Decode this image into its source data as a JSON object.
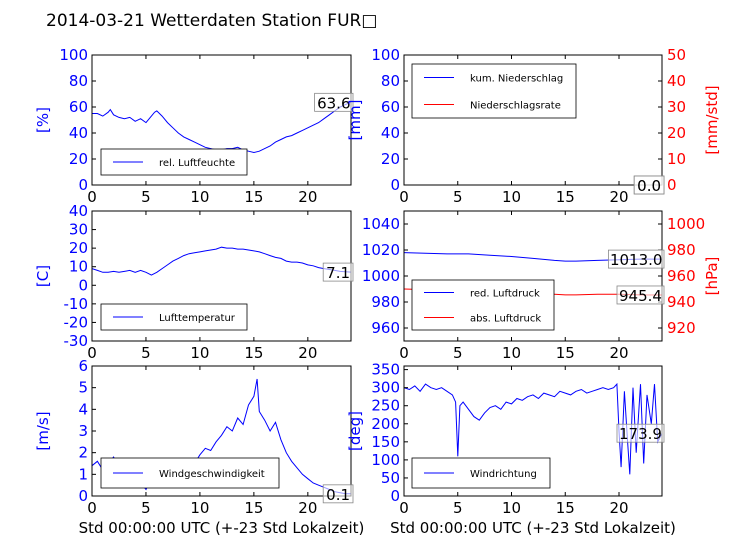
{
  "figure_title": "2014-03-21 Wetterdaten Station FUR□",
  "colors": {
    "primary": "#0000ff",
    "secondary": "#ff0000",
    "axis": "#000000",
    "label_box": "#888888"
  },
  "chart_data": [
    {
      "id": "humidity",
      "type": "line",
      "ylabel": "[%]",
      "xlabel": "",
      "xlim": [
        0,
        24
      ],
      "ylim": [
        0,
        100
      ],
      "xticks": [
        0,
        5,
        10,
        15,
        20
      ],
      "yticks": [
        0,
        20,
        40,
        60,
        80,
        100
      ],
      "legend_loc": "lower-left",
      "annotation": "63.6",
      "series": [
        {
          "name": "rel. Luftfeuchte",
          "color": "#0000ff",
          "x": [
            0,
            0.5,
            1,
            1.5,
            1.7,
            2,
            2.5,
            3,
            3.5,
            4,
            4.5,
            5,
            5.5,
            5.8,
            6,
            6.5,
            7,
            7.5,
            8,
            8.5,
            9,
            9.5,
            10,
            10.5,
            11,
            11.5,
            12,
            12.5,
            13,
            13.5,
            14,
            14.5,
            15,
            15.5,
            16,
            16.5,
            17,
            17.5,
            18,
            18.5,
            19,
            19.5,
            20,
            20.5,
            21,
            21.5,
            22,
            22.5,
            23,
            23.5,
            24
          ],
          "y": [
            55,
            55,
            53,
            56,
            58,
            54,
            52,
            51,
            52,
            49,
            51,
            48,
            53,
            56,
            57,
            53,
            48,
            44,
            40,
            37,
            35,
            33,
            31,
            29,
            28,
            27,
            27,
            28,
            28,
            29,
            27,
            26,
            25,
            26,
            28,
            30,
            33,
            35,
            37,
            38,
            40,
            42,
            44,
            46,
            48,
            51,
            54,
            57,
            60,
            62,
            63.6
          ]
        }
      ]
    },
    {
      "id": "rain",
      "type": "line",
      "ylabel": "[mm]",
      "y2label": "[mm/std]",
      "xlabel": "",
      "xlim": [
        0,
        24
      ],
      "ylim": [
        0,
        100
      ],
      "y2lim": [
        0,
        50
      ],
      "xticks": [
        0,
        5,
        10,
        15,
        20
      ],
      "yticks": [
        0,
        20,
        40,
        60,
        80,
        100
      ],
      "y2ticks": [
        0,
        10,
        20,
        30,
        40,
        50
      ],
      "legend_loc": "upper-left",
      "annotation": "0.0",
      "annotation2": "0.0",
      "series": [
        {
          "name": "kum. Niederschlag",
          "color": "#0000ff",
          "axis": "left",
          "x": [
            0,
            24
          ],
          "y": [
            0,
            0
          ]
        },
        {
          "name": "Niederschlagsrate",
          "color": "#ff0000",
          "axis": "right",
          "x": [
            0,
            24
          ],
          "y": [
            0,
            0
          ]
        }
      ]
    },
    {
      "id": "temperature",
      "type": "line",
      "ylabel": "[C]",
      "xlabel": "",
      "xlim": [
        0,
        24
      ],
      "ylim": [
        -30,
        40
      ],
      "xticks": [
        0,
        5,
        10,
        15,
        20
      ],
      "yticks": [
        -30,
        -20,
        -10,
        0,
        10,
        20,
        30,
        40
      ],
      "legend_loc": "lower-left",
      "annotation": "7.1",
      "series": [
        {
          "name": "Lufttemperatur",
          "color": "#0000ff",
          "x": [
            0,
            0.5,
            1,
            1.5,
            2,
            2.5,
            3,
            3.5,
            4,
            4.5,
            5,
            5.5,
            6,
            6.5,
            7,
            7.5,
            8,
            8.5,
            9,
            9.5,
            10,
            10.5,
            11,
            11.5,
            12,
            12.5,
            13,
            13.5,
            14,
            14.5,
            15,
            15.5,
            16,
            16.5,
            17,
            17.5,
            18,
            18.5,
            19,
            19.5,
            20,
            20.5,
            21,
            21.5,
            22,
            22.5,
            23,
            23.5,
            24
          ],
          "y": [
            9,
            8,
            7,
            7,
            7.5,
            7,
            7.5,
            8,
            7,
            8,
            7,
            5.5,
            7,
            9,
            11,
            13,
            14.5,
            16,
            17,
            17.5,
            18,
            18.5,
            19,
            19.5,
            20.5,
            20,
            20,
            19.5,
            19.5,
            19,
            18.5,
            18,
            17,
            16,
            15,
            14.5,
            13,
            12.5,
            12.5,
            12,
            11,
            10.5,
            9.5,
            9,
            8.5,
            8,
            7.5,
            7.3,
            7.1
          ]
        }
      ]
    },
    {
      "id": "pressure",
      "type": "line",
      "ylabel": "",
      "y2label": "[hPa]",
      "xlabel": "",
      "xlim": [
        0,
        24
      ],
      "ylim": [
        950,
        1050
      ],
      "y2lim": [
        910,
        1010
      ],
      "xticks": [
        0,
        5,
        10,
        15,
        20
      ],
      "yticks": [
        960,
        980,
        1000,
        1020,
        1040
      ],
      "y2ticks": [
        920,
        940,
        960,
        980,
        1000
      ],
      "legend_loc": "lower-left",
      "annotation": "1013.0",
      "annotation2": "945.4",
      "series": [
        {
          "name": "red. Luftdruck",
          "color": "#0000ff",
          "axis": "left",
          "x": [
            0,
            2,
            4,
            6,
            8,
            10,
            12,
            14,
            15,
            16,
            18,
            20,
            22,
            24
          ],
          "y": [
            1018,
            1017.5,
            1017,
            1017,
            1016,
            1015,
            1013.5,
            1012,
            1011.5,
            1011.5,
            1012,
            1012.5,
            1013,
            1013
          ]
        },
        {
          "name": "abs. Luftdruck",
          "color": "#ff0000",
          "axis": "right",
          "x": [
            0,
            2,
            4,
            6,
            8,
            10,
            12,
            14,
            15,
            16,
            18,
            20,
            22,
            24
          ],
          "y": [
            950,
            949.5,
            949,
            949,
            948.5,
            948,
            947,
            946,
            945.5,
            945.5,
            946,
            946,
            945.5,
            945.4
          ]
        }
      ]
    },
    {
      "id": "wind_speed",
      "type": "line",
      "ylabel": "[m/s]",
      "xlabel": "Std 00:00:00 UTC (+-23 Std Lokalzeit)",
      "xlim": [
        0,
        24
      ],
      "ylim": [
        0,
        6
      ],
      "xticks": [
        0,
        5,
        10,
        15,
        20
      ],
      "yticks": [
        0,
        1,
        2,
        3,
        4,
        5,
        6
      ],
      "legend_loc": "lower-left",
      "annotation": "0.1",
      "series": [
        {
          "name": "Windgeschwindigkeit",
          "color": "#0000ff",
          "x": [
            0,
            0.5,
            1,
            1.5,
            2,
            2.5,
            3,
            3.5,
            4,
            4.5,
            5,
            5.5,
            6,
            6.5,
            7,
            7.5,
            8,
            8.5,
            9,
            9.5,
            10,
            10.5,
            11,
            11.5,
            12,
            12.5,
            13,
            13.5,
            14,
            14.5,
            15,
            15.3,
            15.5,
            16,
            16.5,
            17,
            17.5,
            18,
            18.5,
            19,
            19.5,
            20,
            20.5,
            21,
            21.5,
            22,
            22.5,
            23,
            23.5,
            24
          ],
          "y": [
            1.4,
            1.6,
            1.2,
            1.5,
            1.8,
            1.3,
            1.0,
            1.4,
            1.1,
            0.6,
            0.3,
            0.8,
            1.2,
            1.0,
            1.5,
            1.3,
            1.1,
            1.4,
            1.6,
            1.5,
            1.9,
            2.2,
            2.1,
            2.5,
            2.8,
            3.2,
            3.0,
            3.6,
            3.3,
            4.2,
            4.6,
            5.4,
            3.9,
            3.5,
            3.0,
            3.4,
            2.6,
            2.0,
            1.6,
            1.3,
            1.0,
            0.8,
            0.6,
            0.5,
            0.4,
            0.3,
            0.2,
            0.15,
            0.1,
            0.1
          ]
        }
      ]
    },
    {
      "id": "wind_direction",
      "type": "line",
      "ylabel": "[deg]",
      "xlabel": "Std 00:00:00 UTC (+-23 Std Lokalzeit)",
      "xlim": [
        0,
        24
      ],
      "ylim": [
        0,
        360
      ],
      "xticks": [
        0,
        5,
        10,
        15,
        20
      ],
      "yticks": [
        0,
        50,
        100,
        150,
        200,
        250,
        300,
        350
      ],
      "legend_loc": "lower-left",
      "annotation": "173.9",
      "series": [
        {
          "name": "Windrichtung",
          "color": "#0000ff",
          "x": [
            0,
            0.5,
            1,
            1.5,
            2,
            2.5,
            3,
            3.5,
            4,
            4.5,
            4.8,
            5,
            5.2,
            5.5,
            6,
            6.5,
            7,
            7.5,
            8,
            8.5,
            9,
            9.5,
            10,
            10.5,
            11,
            11.5,
            12,
            12.5,
            13,
            13.5,
            14,
            14.5,
            15,
            15.5,
            16,
            16.5,
            17,
            17.5,
            18,
            18.5,
            19,
            19.5,
            19.8,
            20,
            20.2,
            20.5,
            20.8,
            21,
            21.3,
            21.6,
            22,
            22.3,
            22.6,
            23,
            23.3,
            23.6,
            24
          ],
          "y": [
            300,
            295,
            305,
            290,
            310,
            300,
            295,
            300,
            290,
            280,
            260,
            110,
            250,
            260,
            240,
            220,
            210,
            230,
            245,
            250,
            240,
            260,
            255,
            270,
            265,
            275,
            280,
            270,
            285,
            280,
            275,
            290,
            285,
            280,
            290,
            295,
            285,
            290,
            295,
            300,
            295,
            300,
            310,
            180,
            80,
            290,
            150,
            60,
            300,
            120,
            310,
            90,
            280,
            200,
            310,
            150,
            173.9
          ]
        }
      ]
    }
  ]
}
